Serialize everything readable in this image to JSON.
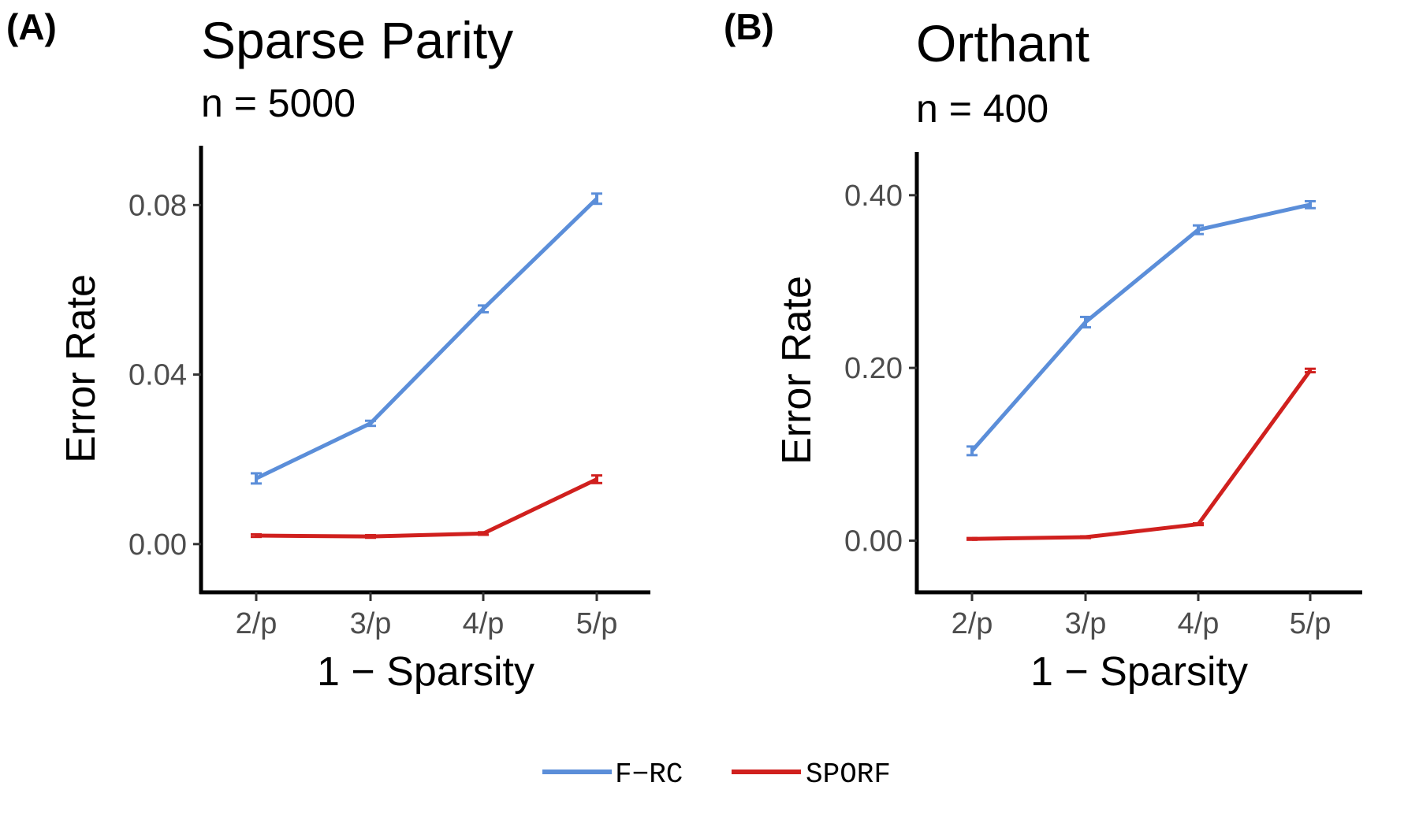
{
  "legend": {
    "items": [
      {
        "label": "F−RC",
        "color": "#5B8ED9"
      },
      {
        "label": "SPORF",
        "color": "#D0201E"
      }
    ]
  },
  "chart_data": [
    {
      "type": "line",
      "panel_label": "(A)",
      "title": "Sparse Parity",
      "subtitle": "n = 5000",
      "xlabel": "1 − Sparsity",
      "ylabel": "Error Rate",
      "categories": [
        "2/p",
        "3/p",
        "4/p",
        "5/p"
      ],
      "ylim": [
        -0.011,
        0.094
      ],
      "yticks": [
        0.0,
        0.04,
        0.08
      ],
      "ytick_labels": [
        "0.00",
        "0.04",
        "0.08"
      ],
      "series": [
        {
          "name": "F−RC",
          "color": "#5B8ED9",
          "values": [
            0.0155,
            0.0285,
            0.0555,
            0.0815
          ],
          "errors": [
            0.0012,
            0.0006,
            0.0008,
            0.0012
          ]
        },
        {
          "name": "SPORF",
          "color": "#D0201E",
          "values": [
            0.002,
            0.0018,
            0.0025,
            0.0153
          ],
          "errors": [
            0.0003,
            0.0003,
            0.0003,
            0.0009
          ]
        }
      ]
    },
    {
      "type": "line",
      "panel_label": "(B)",
      "title": "Orthant",
      "subtitle": "n = 400",
      "xlabel": "1 − Sparsity",
      "ylabel": "Error Rate",
      "categories": [
        "2/p",
        "3/p",
        "4/p",
        "5/p"
      ],
      "ylim": [
        -0.058,
        0.45
      ],
      "yticks": [
        0.0,
        0.2,
        0.4
      ],
      "ytick_labels": [
        "0.00",
        "0.20",
        "0.40"
      ],
      "series": [
        {
          "name": "F−RC",
          "color": "#5B8ED9",
          "values": [
            0.104,
            0.253,
            0.36,
            0.389
          ],
          "errors": [
            0.005,
            0.006,
            0.005,
            0.004
          ]
        },
        {
          "name": "SPORF",
          "color": "#D0201E",
          "values": [
            0.002,
            0.004,
            0.019,
            0.197
          ],
          "errors": [
            0.001,
            0.001,
            0.001,
            0.002
          ]
        }
      ]
    }
  ]
}
